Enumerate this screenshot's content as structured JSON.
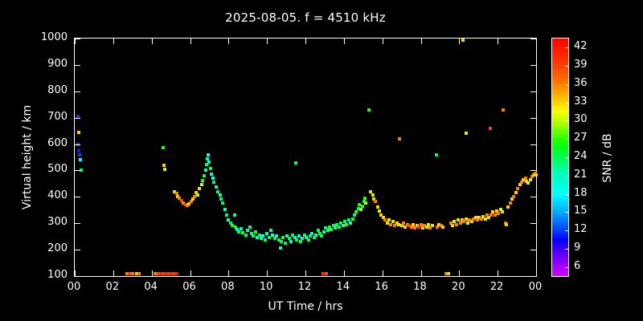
{
  "chart_data": {
    "type": "scatter",
    "title": "2025-08-05. f = 4510 kHz",
    "xlabel": "UT Time / hrs",
    "ylabel": "Virtual height / km",
    "colorbar_label": "SNR / dB",
    "xlim": [
      0,
      24
    ],
    "ylim": [
      100,
      1000
    ],
    "x_tick_values": [
      0,
      2,
      4,
      6,
      8,
      10,
      12,
      14,
      16,
      18,
      20,
      22,
      24
    ],
    "x_tick_labels": [
      "00",
      "02",
      "04",
      "06",
      "08",
      "10",
      "12",
      "14",
      "16",
      "18",
      "20",
      "22",
      "00"
    ],
    "y_ticks": [
      100,
      200,
      300,
      400,
      500,
      600,
      700,
      800,
      900,
      1000
    ],
    "colorbar_ticks": [
      6,
      9,
      12,
      15,
      18,
      21,
      24,
      27,
      30,
      33,
      36,
      39,
      42
    ],
    "colorbar_range": [
      4.5,
      43.5
    ],
    "background": "#000000",
    "grid": false,
    "legend": "colorbar-right",
    "points_format": "[ut_hours, virtual_height_km, snr_db]",
    "points": [
      [
        0.15,
        705,
        12
      ],
      [
        0.2,
        645,
        33
      ],
      [
        0.15,
        600,
        12
      ],
      [
        0.2,
        573,
        9
      ],
      [
        0.27,
        558,
        12
      ],
      [
        0.3,
        540,
        18
      ],
      [
        0.35,
        500,
        24
      ],
      [
        2.7,
        110,
        36
      ],
      [
        2.85,
        108,
        39
      ],
      [
        3.0,
        110,
        36
      ],
      [
        3.2,
        108,
        33
      ],
      [
        3.35,
        110,
        36
      ],
      [
        4.2,
        110,
        36
      ],
      [
        4.35,
        108,
        39
      ],
      [
        4.5,
        110,
        42
      ],
      [
        4.6,
        108,
        39
      ],
      [
        4.75,
        110,
        42
      ],
      [
        4.9,
        108,
        39
      ],
      [
        5.0,
        110,
        42
      ],
      [
        5.15,
        108,
        39
      ],
      [
        5.3,
        110,
        42
      ],
      [
        4.6,
        585,
        27
      ],
      [
        4.65,
        520,
        33
      ],
      [
        4.7,
        505,
        30
      ],
      [
        5.2,
        420,
        33
      ],
      [
        5.3,
        412,
        36
      ],
      [
        5.35,
        402,
        33
      ],
      [
        5.45,
        395,
        36
      ],
      [
        5.55,
        385,
        39
      ],
      [
        5.65,
        378,
        36
      ],
      [
        5.75,
        372,
        39
      ],
      [
        5.85,
        368,
        36
      ],
      [
        5.95,
        374,
        33
      ],
      [
        6.05,
        382,
        36
      ],
      [
        6.15,
        392,
        33
      ],
      [
        6.25,
        402,
        36
      ],
      [
        6.3,
        416,
        33
      ],
      [
        6.4,
        408,
        30
      ],
      [
        6.5,
        432,
        33
      ],
      [
        6.6,
        448,
        30
      ],
      [
        6.65,
        462,
        27
      ],
      [
        6.75,
        480,
        24
      ],
      [
        6.8,
        500,
        21
      ],
      [
        6.85,
        522,
        24
      ],
      [
        6.9,
        545,
        21
      ],
      [
        6.95,
        558,
        18
      ],
      [
        7.0,
        532,
        21
      ],
      [
        7.05,
        508,
        24
      ],
      [
        7.1,
        486,
        21
      ],
      [
        7.2,
        470,
        18
      ],
      [
        7.25,
        455,
        24
      ],
      [
        7.35,
        438,
        21
      ],
      [
        7.45,
        420,
        24
      ],
      [
        7.55,
        408,
        21
      ],
      [
        7.6,
        392,
        24
      ],
      [
        7.7,
        378,
        24
      ],
      [
        7.8,
        352,
        21
      ],
      [
        7.9,
        332,
        24
      ],
      [
        8.0,
        312,
        21
      ],
      [
        8.1,
        300,
        24
      ],
      [
        8.2,
        292,
        27
      ],
      [
        8.3,
        330,
        21
      ],
      [
        8.35,
        285,
        24
      ],
      [
        8.45,
        276,
        21
      ],
      [
        8.55,
        268,
        24
      ],
      [
        8.65,
        280,
        21
      ],
      [
        8.75,
        264,
        27
      ],
      [
        8.9,
        256,
        24
      ],
      [
        9.0,
        272,
        21
      ],
      [
        9.1,
        286,
        24
      ],
      [
        9.2,
        262,
        21
      ],
      [
        9.3,
        252,
        24
      ],
      [
        9.4,
        266,
        27
      ],
      [
        9.5,
        246,
        21
      ],
      [
        9.6,
        256,
        24
      ],
      [
        9.7,
        242,
        21
      ],
      [
        9.8,
        252,
        18
      ],
      [
        9.9,
        236,
        24
      ],
      [
        10.0,
        262,
        21
      ],
      [
        10.1,
        246,
        24
      ],
      [
        10.2,
        272,
        21
      ],
      [
        10.3,
        256,
        18
      ],
      [
        10.4,
        242,
        24
      ],
      [
        10.5,
        252,
        21
      ],
      [
        10.6,
        236,
        24
      ],
      [
        10.7,
        205,
        21
      ],
      [
        10.75,
        230,
        24
      ],
      [
        10.85,
        246,
        27
      ],
      [
        10.95,
        226,
        24
      ],
      [
        11.05,
        252,
        21
      ],
      [
        11.15,
        242,
        24
      ],
      [
        11.25,
        232,
        21
      ],
      [
        11.35,
        256,
        24
      ],
      [
        11.45,
        246,
        21
      ],
      [
        11.5,
        530,
        24
      ],
      [
        11.55,
        236,
        24
      ],
      [
        11.65,
        252,
        21
      ],
      [
        11.75,
        232,
        24
      ],
      [
        11.85,
        242,
        21
      ],
      [
        11.95,
        256,
        24
      ],
      [
        12.05,
        246,
        21
      ],
      [
        12.15,
        236,
        27
      ],
      [
        12.25,
        252,
        24
      ],
      [
        12.35,
        262,
        21
      ],
      [
        12.45,
        246,
        24
      ],
      [
        12.55,
        256,
        21
      ],
      [
        12.65,
        272,
        24
      ],
      [
        12.75,
        262,
        27
      ],
      [
        12.85,
        252,
        24
      ],
      [
        12.95,
        266,
        21
      ],
      [
        12.9,
        108,
        39
      ],
      [
        13.0,
        110,
        42
      ],
      [
        13.1,
        108,
        39
      ],
      [
        13.05,
        282,
        24
      ],
      [
        13.15,
        272,
        21
      ],
      [
        13.25,
        286,
        24
      ],
      [
        13.35,
        276,
        27
      ],
      [
        13.45,
        292,
        24
      ],
      [
        13.55,
        282,
        21
      ],
      [
        13.65,
        296,
        24
      ],
      [
        13.75,
        286,
        27
      ],
      [
        13.85,
        302,
        24
      ],
      [
        13.95,
        292,
        21
      ],
      [
        14.05,
        306,
        24
      ],
      [
        14.15,
        296,
        27
      ],
      [
        14.25,
        312,
        24
      ],
      [
        14.35,
        302,
        21
      ],
      [
        14.45,
        316,
        27
      ],
      [
        14.55,
        332,
        24
      ],
      [
        14.65,
        342,
        27
      ],
      [
        14.75,
        356,
        24
      ],
      [
        14.8,
        372,
        27
      ],
      [
        14.9,
        352,
        30
      ],
      [
        14.95,
        366,
        27
      ],
      [
        15.05,
        382,
        24
      ],
      [
        15.1,
        396,
        27
      ],
      [
        15.15,
        376,
        30
      ],
      [
        15.3,
        730,
        27
      ],
      [
        15.4,
        420,
        33
      ],
      [
        15.5,
        406,
        30
      ],
      [
        15.55,
        392,
        33
      ],
      [
        15.65,
        382,
        36
      ],
      [
        15.75,
        362,
        33
      ],
      [
        15.85,
        346,
        30
      ],
      [
        15.95,
        332,
        33
      ],
      [
        16.05,
        322,
        33
      ],
      [
        16.15,
        312,
        36
      ],
      [
        16.25,
        302,
        33
      ],
      [
        16.35,
        312,
        30
      ],
      [
        16.45,
        296,
        36
      ],
      [
        16.55,
        306,
        33
      ],
      [
        16.65,
        292,
        36
      ],
      [
        16.75,
        302,
        33
      ],
      [
        16.85,
        296,
        30
      ],
      [
        16.9,
        620,
        36
      ],
      [
        17.0,
        292,
        33
      ],
      [
        17.1,
        302,
        36
      ],
      [
        17.2,
        286,
        33
      ],
      [
        17.3,
        296,
        36
      ],
      [
        17.4,
        292,
        39
      ],
      [
        17.5,
        286,
        36
      ],
      [
        17.6,
        296,
        33
      ],
      [
        17.7,
        282,
        36
      ],
      [
        17.8,
        292,
        33
      ],
      [
        17.9,
        286,
        39
      ],
      [
        18.0,
        296,
        36
      ],
      [
        18.1,
        282,
        33
      ],
      [
        18.2,
        292,
        36
      ],
      [
        18.3,
        286,
        33
      ],
      [
        18.4,
        296,
        30
      ],
      [
        18.5,
        282,
        36
      ],
      [
        18.6,
        292,
        33
      ],
      [
        18.8,
        560,
        24
      ],
      [
        18.85,
        286,
        36
      ],
      [
        18.95,
        296,
        33
      ],
      [
        19.05,
        292,
        36
      ],
      [
        19.15,
        286,
        33
      ],
      [
        19.3,
        110,
        36
      ],
      [
        19.45,
        108,
        33
      ],
      [
        19.55,
        302,
        36
      ],
      [
        19.65,
        292,
        33
      ],
      [
        19.75,
        306,
        30
      ],
      [
        19.85,
        296,
        36
      ],
      [
        19.95,
        312,
        33
      ],
      [
        20.2,
        995,
        33
      ],
      [
        20.35,
        640,
        30
      ],
      [
        21.6,
        660,
        39
      ],
      [
        22.3,
        730,
        36
      ],
      [
        20.05,
        302,
        36
      ],
      [
        20.15,
        312,
        33
      ],
      [
        20.25,
        306,
        36
      ],
      [
        20.35,
        316,
        33
      ],
      [
        20.45,
        302,
        30
      ],
      [
        20.55,
        312,
        36
      ],
      [
        20.65,
        306,
        33
      ],
      [
        20.75,
        316,
        36
      ],
      [
        20.85,
        322,
        33
      ],
      [
        20.95,
        312,
        36
      ],
      [
        21.05,
        322,
        33
      ],
      [
        21.15,
        316,
        36
      ],
      [
        21.25,
        326,
        33
      ],
      [
        21.35,
        316,
        30
      ],
      [
        21.45,
        332,
        36
      ],
      [
        21.55,
        322,
        33
      ],
      [
        21.65,
        332,
        36
      ],
      [
        21.75,
        342,
        33
      ],
      [
        21.85,
        332,
        36
      ],
      [
        21.95,
        346,
        33
      ],
      [
        22.05,
        336,
        36
      ],
      [
        22.15,
        352,
        30
      ],
      [
        22.25,
        342,
        33
      ],
      [
        22.4,
        302,
        36
      ],
      [
        22.45,
        296,
        33
      ],
      [
        22.55,
        362,
        33
      ],
      [
        22.65,
        376,
        36
      ],
      [
        22.75,
        392,
        33
      ],
      [
        22.85,
        402,
        36
      ],
      [
        22.95,
        416,
        33
      ],
      [
        23.05,
        432,
        36
      ],
      [
        23.15,
        446,
        33
      ],
      [
        23.25,
        456,
        36
      ],
      [
        23.35,
        466,
        33
      ],
      [
        23.45,
        472,
        36
      ],
      [
        23.5,
        460,
        33
      ],
      [
        23.6,
        452,
        30
      ],
      [
        23.7,
        466,
        33
      ],
      [
        23.8,
        476,
        36
      ],
      [
        23.88,
        482,
        33
      ],
      [
        23.95,
        488,
        36
      ],
      [
        24.0,
        482,
        33
      ]
    ]
  }
}
